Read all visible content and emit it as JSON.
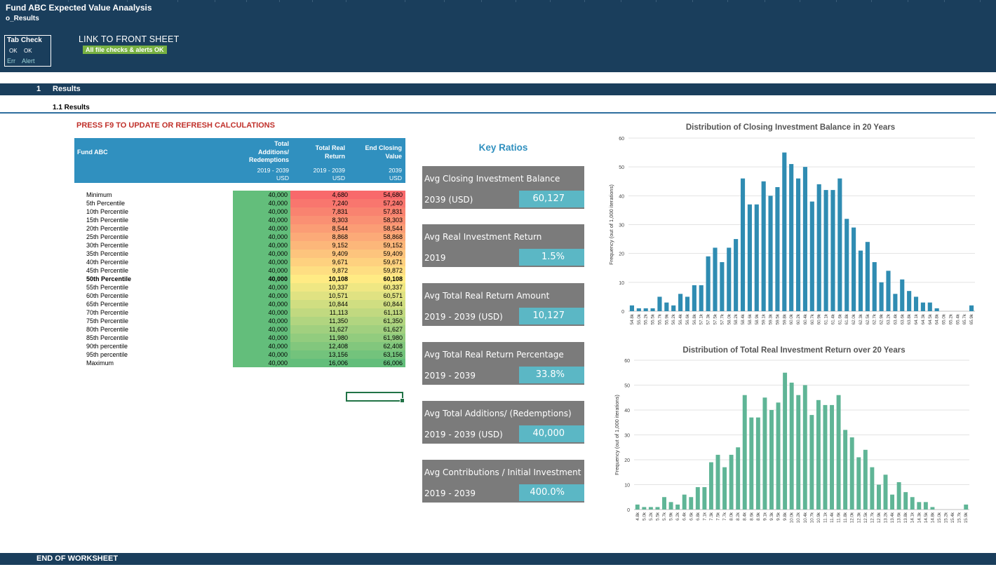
{
  "header": {
    "title": "Fund ABC Expected Value Anaalysis",
    "sheet": "o_Results",
    "tab_check": {
      "heading": "Tab Check",
      "ok1": "OK",
      "ok2": "OK",
      "err": "Err",
      "alert": "Alert"
    },
    "front_link": "LINK TO FRONT SHEET",
    "checks_status": "All file checks & alerts OK"
  },
  "section": {
    "number": "1",
    "title": "Results",
    "subsection": "1.1 Results"
  },
  "press_note": "PRESS F9 TO UPDATE OR REFRESH CALCULATIONS",
  "table": {
    "name": "Fund ABC",
    "col1": [
      "Total",
      "Additions/",
      "Redemptions"
    ],
    "col2": [
      "Total Real",
      "Return"
    ],
    "col3": [
      "End Closing",
      "Value"
    ],
    "col1_period": "2019 - 2039",
    "col2_period": "2019 - 2039",
    "col3_period": "2039",
    "unit": "USD",
    "rows": [
      {
        "label": "Minimum",
        "a": "40,000",
        "r": "4,680",
        "e": "54,680"
      },
      {
        "label": "5th Percentile",
        "a": "40,000",
        "r": "7,240",
        "e": "57,240"
      },
      {
        "label": "10th Percentile",
        "a": "40,000",
        "r": "7,831",
        "e": "57,831"
      },
      {
        "label": "15th Percentile",
        "a": "40,000",
        "r": "8,303",
        "e": "58,303"
      },
      {
        "label": "20th Percentile",
        "a": "40,000",
        "r": "8,544",
        "e": "58,544"
      },
      {
        "label": "25th Percentile",
        "a": "40,000",
        "r": "8,868",
        "e": "58,868"
      },
      {
        "label": "30th Percentile",
        "a": "40,000",
        "r": "9,152",
        "e": "59,152"
      },
      {
        "label": "35th Percentile",
        "a": "40,000",
        "r": "9,409",
        "e": "59,409"
      },
      {
        "label": "40th Percentile",
        "a": "40,000",
        "r": "9,671",
        "e": "59,671"
      },
      {
        "label": "45th Percentile",
        "a": "40,000",
        "r": "9,872",
        "e": "59,872"
      },
      {
        "label": "50th Percentile",
        "a": "40,000",
        "r": "10,108",
        "e": "60,108"
      },
      {
        "label": "55th Percentile",
        "a": "40,000",
        "r": "10,337",
        "e": "60,337"
      },
      {
        "label": "60th Percentile",
        "a": "40,000",
        "r": "10,571",
        "e": "60,571"
      },
      {
        "label": "65th Percentile",
        "a": "40,000",
        "r": "10,844",
        "e": "60,844"
      },
      {
        "label": "70th Percentile",
        "a": "40,000",
        "r": "11,113",
        "e": "61,113"
      },
      {
        "label": "75th Percentile",
        "a": "40,000",
        "r": "11,350",
        "e": "61,350"
      },
      {
        "label": "80th Percentile",
        "a": "40,000",
        "r": "11,627",
        "e": "61,627"
      },
      {
        "label": "85th Percentile",
        "a": "40,000",
        "r": "11,980",
        "e": "61,980"
      },
      {
        "label": "90th percentile",
        "a": "40,000",
        "r": "12,408",
        "e": "62,408"
      },
      {
        "label": "95th percentile",
        "a": "40,000",
        "r": "13,156",
        "e": "63,156"
      },
      {
        "label": "Maximum",
        "a": "40,000",
        "r": "16,006",
        "e": "66,006"
      }
    ]
  },
  "ratios": {
    "title": "Key Ratios",
    "items": [
      {
        "label": "Avg Closing Investment Balance",
        "period": "2039 (USD)",
        "value": "60,127"
      },
      {
        "label": "Avg Real Investment Return",
        "period": "2019",
        "value": "1.5%"
      },
      {
        "label": "Avg Total Real Return Amount",
        "period": "2019 - 2039 (USD)",
        "value": "10,127"
      },
      {
        "label": "Avg Total Real Return Percentage",
        "period": "2019 - 2039",
        "value": "33.8%"
      },
      {
        "label": "Avg Total Additions/ (Redemptions)",
        "period": "2019 - 2039 (USD)",
        "value": "40,000"
      },
      {
        "label": "Avg Contributions / Initial Investment",
        "period": "2019 - 2039",
        "value": "400.0%"
      }
    ]
  },
  "colors": {
    "banner": "#1a3e5c",
    "chart1_bar": "#2f8cb2",
    "chart2_bar": "#5fb596",
    "ratio_box": "#7b7b7b",
    "ratio_value": "#5bb7c5",
    "press_red": "#c0302a"
  },
  "chart_data": [
    {
      "type": "bar",
      "title": "Distribution of Closing Investment Balance in 20 Years",
      "ylabel": "Frequency (out of 1,000 iterations)",
      "ylim": [
        0,
        60
      ],
      "yticks": [
        0,
        10,
        20,
        30,
        40,
        50,
        60
      ],
      "categories": [
        "54.8k",
        "55.0k",
        "55.2k",
        "55.5k",
        "55.7k",
        "55.9k",
        "56.2k",
        "56.4k",
        "56.6k",
        "56.8k",
        "57.1k",
        "57.3k",
        "57.5k",
        "57.7k",
        "58.0k",
        "58.2k",
        "58.4k",
        "58.6k",
        "58.9k",
        "59.1k",
        "59.3k",
        "59.5k",
        "59.8k",
        "60.0k",
        "60.2k",
        "60.4k",
        "60.7k",
        "60.9k",
        "61.1k",
        "61.4k",
        "61.6k",
        "61.8k",
        "62.0k",
        "62.3k",
        "62.5k",
        "62.7k",
        "62.9k",
        "63.2k",
        "63.4k",
        "63.6k",
        "63.8k",
        "64.1k",
        "64.3k",
        "64.5k",
        "64.8k",
        "65.0k",
        "65.2k",
        "65.4k",
        "65.7k",
        "65.9k"
      ],
      "values": [
        2,
        1,
        1,
        1,
        5,
        3,
        2,
        6,
        5,
        9,
        9,
        19,
        22,
        17,
        22,
        25,
        46,
        37,
        37,
        45,
        40,
        43,
        55,
        51,
        46,
        50,
        38,
        44,
        42,
        42,
        46,
        32,
        29,
        21,
        24,
        17,
        10,
        14,
        6,
        11,
        7,
        5,
        3,
        3,
        1,
        0,
        0,
        0,
        0,
        2
      ]
    },
    {
      "type": "bar",
      "title": "Distribution of Total Real Investment Return over 20 Years",
      "ylabel": "Frequency (out of 1,000 iterations)",
      "ylim": [
        0,
        60
      ],
      "yticks": [
        0,
        10,
        20,
        30,
        40,
        50,
        60
      ],
      "categories": [
        "4.8k",
        "5.0k",
        "5.2k",
        "5.5k",
        "5.7k",
        "5.9k",
        "6.2k",
        "6.4k",
        "6.6k",
        "6.8k",
        "7.1k",
        "7.3k",
        "7.5k",
        "7.7k",
        "8.0k",
        "8.2k",
        "8.4k",
        "8.6k",
        "8.9k",
        "9.1k",
        "9.3k",
        "9.5k",
        "9.8k",
        "10.0k",
        "10.2k",
        "10.4k",
        "10.7k",
        "10.9k",
        "11.1k",
        "11.4k",
        "11.6k",
        "11.8k",
        "12.0k",
        "12.3k",
        "12.5k",
        "12.7k",
        "12.9k",
        "13.2k",
        "13.4k",
        "13.6k",
        "13.8k",
        "14.1k",
        "14.3k",
        "14.5k",
        "14.8k",
        "15.0k",
        "15.2k",
        "15.4k",
        "15.7k",
        "15.9k"
      ],
      "values": [
        2,
        1,
        1,
        1,
        5,
        3,
        2,
        6,
        5,
        9,
        9,
        19,
        22,
        17,
        22,
        25,
        46,
        37,
        37,
        45,
        40,
        43,
        55,
        51,
        46,
        50,
        38,
        44,
        42,
        42,
        46,
        32,
        29,
        21,
        24,
        17,
        10,
        14,
        6,
        11,
        7,
        5,
        3,
        3,
        1,
        0,
        0,
        0,
        0,
        2
      ]
    }
  ],
  "footer": "END OF WORKSHEET"
}
